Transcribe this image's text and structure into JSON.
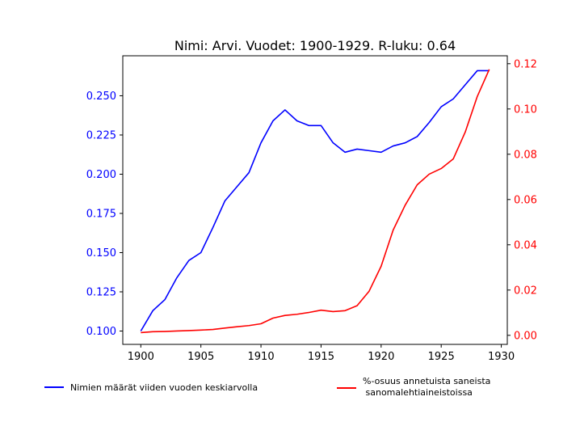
{
  "chart_data": {
    "type": "line",
    "title": "Nimi: Arvi. Vuodet: 1900-1929. R-luku: 0.64",
    "xlabel": "",
    "x": [
      1900,
      1901,
      1902,
      1903,
      1904,
      1905,
      1906,
      1907,
      1908,
      1909,
      1910,
      1911,
      1912,
      1913,
      1914,
      1915,
      1916,
      1917,
      1918,
      1919,
      1920,
      1921,
      1922,
      1923,
      1924,
      1925,
      1926,
      1927,
      1928,
      1929
    ],
    "xlim": [
      1898.5,
      1930.5
    ],
    "xticks": [
      1900,
      1905,
      1910,
      1915,
      1920,
      1925,
      1930
    ],
    "left_axis": {
      "ylabel": "",
      "ylim": [
        0.0915,
        0.2755
      ],
      "ticks": [
        "0.100",
        "0.125",
        "0.150",
        "0.175",
        "0.200",
        "0.225",
        "0.250"
      ],
      "tick_values": [
        0.1,
        0.125,
        0.15,
        0.175,
        0.2,
        0.225,
        0.25
      ],
      "color": "#0000ff"
    },
    "right_axis": {
      "ylabel": "",
      "ylim": [
        -0.004,
        0.1235
      ],
      "ticks": [
        "0.00",
        "0.02",
        "0.04",
        "0.06",
        "0.08",
        "0.10",
        "0.12"
      ],
      "tick_values": [
        0.0,
        0.02,
        0.04,
        0.06,
        0.08,
        0.1,
        0.12
      ],
      "color": "#ff0000"
    },
    "series": [
      {
        "name": "Nimien määrät viiden vuoden keskiarvolla",
        "axis": "left",
        "color": "#0000ff",
        "values": [
          0.1,
          0.113,
          0.12,
          0.134,
          0.145,
          0.15,
          0.166,
          0.183,
          0.192,
          0.201,
          0.22,
          0.234,
          0.241,
          0.234,
          0.231,
          0.231,
          0.22,
          0.214,
          0.216,
          0.215,
          0.214,
          0.218,
          0.22,
          0.224,
          0.233,
          0.243,
          0.248,
          0.257,
          0.266,
          0.266
        ]
      },
      {
        "name": "%-osuus annetuista saneista\n sanomalehtiaineistoissa",
        "axis": "right",
        "color": "#ff0000",
        "values": [
          0.0012,
          0.0016,
          0.0017,
          0.0019,
          0.0021,
          0.0023,
          0.0026,
          0.0032,
          0.0038,
          0.0043,
          0.0051,
          0.0076,
          0.0088,
          0.0093,
          0.0101,
          0.0111,
          0.0105,
          0.0109,
          0.0131,
          0.0195,
          0.0305,
          0.0465,
          0.0575,
          0.0665,
          0.0712,
          0.0737,
          0.0779,
          0.0898,
          0.1055,
          0.1175
        ]
      }
    ],
    "grid": false,
    "legend": "bottom-outside"
  }
}
